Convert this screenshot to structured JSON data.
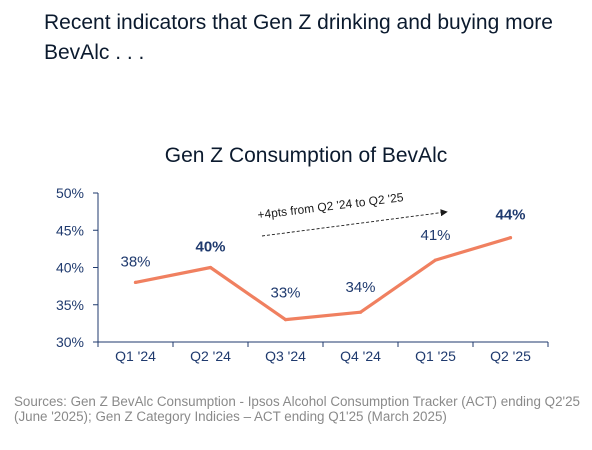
{
  "headline": "Recent indicators that Gen Z drinking and buying more BevAlc  . . .",
  "chart_data": {
    "type": "line",
    "title": "Gen Z Consumption of BevAlc",
    "categories": [
      "Q1 '24",
      "Q2 '24",
      "Q3 '24",
      "Q4 '24",
      "Q1 '25",
      "Q2 '25"
    ],
    "values": [
      38,
      40,
      33,
      34,
      41,
      44
    ],
    "data_labels": [
      "38%",
      "40%",
      "33%",
      "34%",
      "41%",
      "44%"
    ],
    "bold_labels": [
      false,
      true,
      false,
      false,
      false,
      true
    ],
    "y_ticks": [
      "30%",
      "35%",
      "40%",
      "45%",
      "50%"
    ],
    "y_tick_values": [
      30,
      35,
      40,
      45,
      50
    ],
    "ylim": [
      30,
      50
    ],
    "xlabel": "",
    "ylabel": "",
    "line_color": "#f08060",
    "axis_color": "#1f3a6e",
    "annotation": "+4pts from Q2 '24 to Q2 '25",
    "grid": false
  },
  "sources": "Sources: Gen Z BevAlc Consumption - Ipsos Alcohol Consumption Tracker (ACT) ending Q2'25 (June '2025); Gen Z Category Indicies – ACT ending Q1'25 (March 2025)"
}
